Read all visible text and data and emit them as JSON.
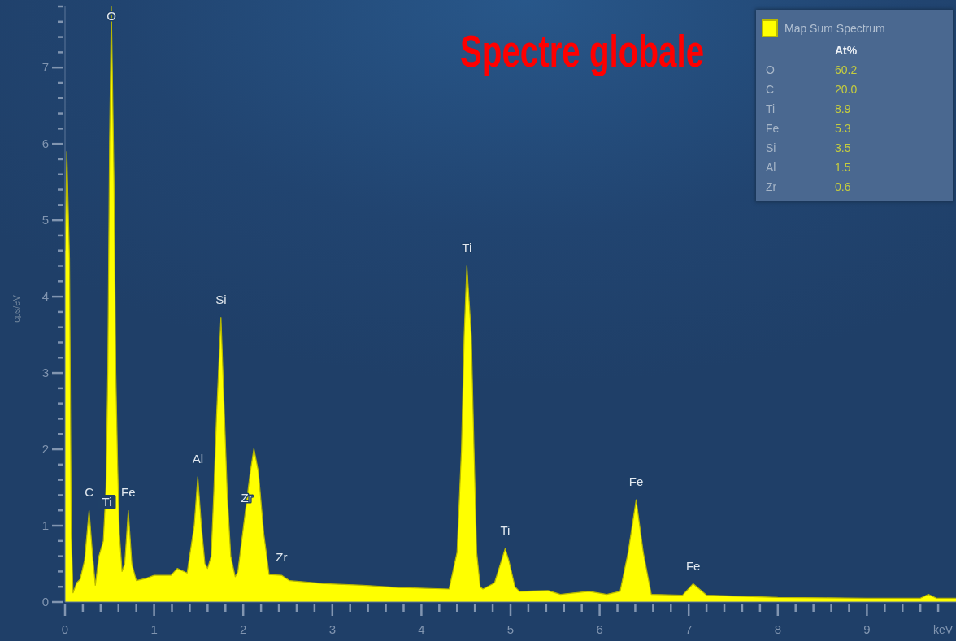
{
  "chart_data": [
    {
      "type": "area",
      "title": "Spectre globale",
      "xlabel": "keV",
      "ylabel": "cps/eV",
      "x": [
        0,
        0.02,
        0.05,
        0.07,
        0.09,
        0.13,
        0.17,
        0.22,
        0.27,
        0.31,
        0.34,
        0.38,
        0.43,
        0.46,
        0.48,
        0.5,
        0.52,
        0.55,
        0.57,
        0.59,
        0.61,
        0.64,
        0.67,
        0.71,
        0.75,
        0.8,
        0.91,
        1.0,
        1.19,
        1.26,
        1.37,
        1.45,
        1.49,
        1.53,
        1.57,
        1.6,
        1.64,
        1.67,
        1.7,
        1.75,
        1.79,
        1.82,
        1.86,
        1.91,
        1.94,
        2.02,
        2.08,
        2.12,
        2.17,
        2.23,
        2.29,
        2.43,
        2.52,
        2.73,
        2.92,
        3.34,
        3.74,
        4.31,
        4.4,
        4.45,
        4.48,
        4.51,
        4.56,
        4.59,
        4.62,
        4.66,
        4.69,
        4.82,
        4.9,
        4.94,
        4.98,
        5.05,
        5.1,
        5.42,
        5.56,
        5.88,
        6.08,
        6.23,
        6.32,
        6.41,
        6.49,
        6.58,
        6.93,
        7.05,
        7.2,
        8.0,
        9.0,
        9.6,
        9.69,
        9.78,
        10.0
      ],
      "series": [
        {
          "name": "Map Sum Spectrum",
          "color": "#ffff00",
          "values": [
            4.6,
            5.9,
            4.5,
            0.9,
            0.12,
            0.25,
            0.3,
            0.55,
            1.2,
            0.6,
            0.22,
            0.6,
            0.8,
            1.5,
            3.0,
            6.0,
            7.8,
            5.5,
            3.0,
            1.8,
            0.9,
            0.4,
            0.5,
            1.2,
            0.5,
            0.28,
            0.31,
            0.35,
            0.35,
            0.44,
            0.38,
            1.0,
            1.64,
            1.0,
            0.5,
            0.44,
            0.6,
            1.43,
            2.42,
            3.73,
            2.42,
            1.43,
            0.6,
            0.33,
            0.4,
            1.15,
            1.71,
            2.01,
            1.71,
            0.9,
            0.36,
            0.35,
            0.28,
            0.26,
            0.24,
            0.22,
            0.19,
            0.17,
            0.65,
            2.0,
            3.49,
            4.41,
            3.49,
            2.0,
            0.65,
            0.2,
            0.17,
            0.25,
            0.55,
            0.7,
            0.55,
            0.2,
            0.14,
            0.15,
            0.1,
            0.14,
            0.1,
            0.14,
            0.65,
            1.34,
            0.65,
            0.1,
            0.09,
            0.24,
            0.09,
            0.06,
            0.05,
            0.05,
            0.1,
            0.05,
            0.05
          ]
        }
      ],
      "xlim": [
        0,
        10
      ],
      "xticks": [
        0,
        {
          "value": 0.2,
          "label": null
        },
        {
          "value": 0.4,
          "label": null
        },
        {
          "value": 0.6,
          "label": null
        },
        {
          "value": 0.8,
          "label": null
        },
        1,
        {
          "value": 1.2,
          "label": null
        },
        {
          "value": 1.4,
          "label": null
        },
        {
          "value": 1.6,
          "label": null
        },
        {
          "value": 1.8,
          "label": null
        },
        2,
        {
          "value": 2.2,
          "label": null
        },
        {
          "value": 2.4,
          "label": null
        },
        {
          "value": 2.6,
          "label": null
        },
        {
          "value": 2.8,
          "label": null
        },
        3,
        {
          "value": 3.2,
          "label": null
        },
        {
          "value": 3.4,
          "label": null
        },
        {
          "value": 3.6,
          "label": null
        },
        {
          "value": 3.8,
          "label": null
        },
        4,
        {
          "value": 4.2,
          "label": null
        },
        {
          "value": 4.4,
          "label": null
        },
        {
          "value": 4.6,
          "label": null
        },
        {
          "value": 4.8,
          "label": null
        },
        5,
        {
          "value": 5.2,
          "label": null
        },
        {
          "value": 5.4,
          "label": null
        },
        {
          "value": 5.6,
          "label": null
        },
        {
          "value": 5.8,
          "label": null
        },
        6,
        {
          "value": 6.2,
          "label": null
        },
        {
          "value": 6.4,
          "label": null
        },
        {
          "value": 6.6,
          "label": null
        },
        {
          "value": 6.8,
          "label": null
        },
        7,
        {
          "value": 7.2,
          "label": null
        },
        {
          "value": 7.4,
          "label": null
        },
        {
          "value": 7.6,
          "label": null
        },
        {
          "value": 7.8,
          "label": null
        },
        8,
        {
          "value": 8.2,
          "label": null
        },
        {
          "value": 8.4,
          "label": null
        },
        {
          "value": 8.6,
          "label": null
        },
        {
          "value": 8.8,
          "label": null
        },
        9,
        {
          "value": 9.2,
          "label": null
        },
        {
          "value": 9.4,
          "label": null
        },
        {
          "value": 9.6,
          "label": null
        },
        {
          "value": 9.8,
          "label": null
        }
      ],
      "ylim": [
        0,
        7.8
      ],
      "yticks": [
        0,
        {
          "value": 0.2,
          "label": null
        },
        {
          "value": 0.4,
          "label": null
        },
        {
          "value": 0.6,
          "label": null
        },
        {
          "value": 0.8,
          "label": null
        },
        1,
        {
          "value": 1.2,
          "label": null
        },
        {
          "value": 1.4,
          "label": null
        },
        {
          "value": 1.6,
          "label": null
        },
        {
          "value": 1.8,
          "label": null
        },
        2,
        {
          "value": 2.2,
          "label": null
        },
        {
          "value": 2.4,
          "label": null
        },
        {
          "value": 2.6,
          "label": null
        },
        {
          "value": 2.8,
          "label": null
        },
        3,
        {
          "value": 3.2,
          "label": null
        },
        {
          "value": 3.4,
          "label": null
        },
        {
          "value": 3.6,
          "label": null
        },
        {
          "value": 3.8,
          "label": null
        },
        4,
        {
          "value": 4.2,
          "label": null
        },
        {
          "value": 4.4,
          "label": null
        },
        {
          "value": 4.6,
          "label": null
        },
        {
          "value": 4.8,
          "label": null
        },
        5,
        {
          "value": 5.2,
          "label": null
        },
        {
          "value": 5.4,
          "label": null
        },
        {
          "value": 5.6,
          "label": null
        },
        {
          "value": 5.8,
          "label": null
        },
        6,
        {
          "value": 6.2,
          "label": null
        },
        {
          "value": 6.4,
          "label": null
        },
        {
          "value": 6.6,
          "label": null
        },
        {
          "value": 6.8,
          "label": null
        },
        7,
        {
          "value": 7.2,
          "label": null
        },
        {
          "value": 7.4,
          "label": null
        },
        {
          "value": 7.6,
          "label": null
        },
        {
          "value": 7.8,
          "label": null
        }
      ],
      "legend": "top right",
      "annotations": [
        {
          "text": "O",
          "x": 0.52,
          "y": 7.67
        },
        {
          "text": "C",
          "x": 0.27,
          "y": 1.2
        },
        {
          "text": "Ti",
          "x": 0.47,
          "y": 1.31
        },
        {
          "text": "Fe",
          "x": 0.71,
          "y": 1.2
        },
        {
          "text": "Al",
          "x": 1.49,
          "y": 1.64
        },
        {
          "text": "Si",
          "x": 1.75,
          "y": 3.73
        },
        {
          "text": "Zr",
          "x": 2.04,
          "y": 1.36
        },
        {
          "text": "Zr",
          "x": 2.43,
          "y": 0.35
        },
        {
          "text": "Ti",
          "x": 4.51,
          "y": 4.41
        },
        {
          "text": "Ti",
          "x": 4.94,
          "y": 0.7
        },
        {
          "text": "Fe",
          "x": 6.41,
          "y": 1.34
        },
        {
          "text": "Fe",
          "x": 7.05,
          "y": 0.24
        }
      ]
    },
    {
      "type": "other",
      "title": "At%",
      "categories": [
        "O",
        "C",
        "Ti",
        "Fe",
        "Si",
        "Al",
        "Zr"
      ],
      "values": [
        60.2,
        20.0,
        8.9,
        5.3,
        3.5,
        1.5,
        0.6
      ],
      "value_labels": [
        "60.2",
        "20.0",
        "8.9",
        "5.3",
        "3.5",
        "1.5",
        "0.6"
      ]
    }
  ]
}
